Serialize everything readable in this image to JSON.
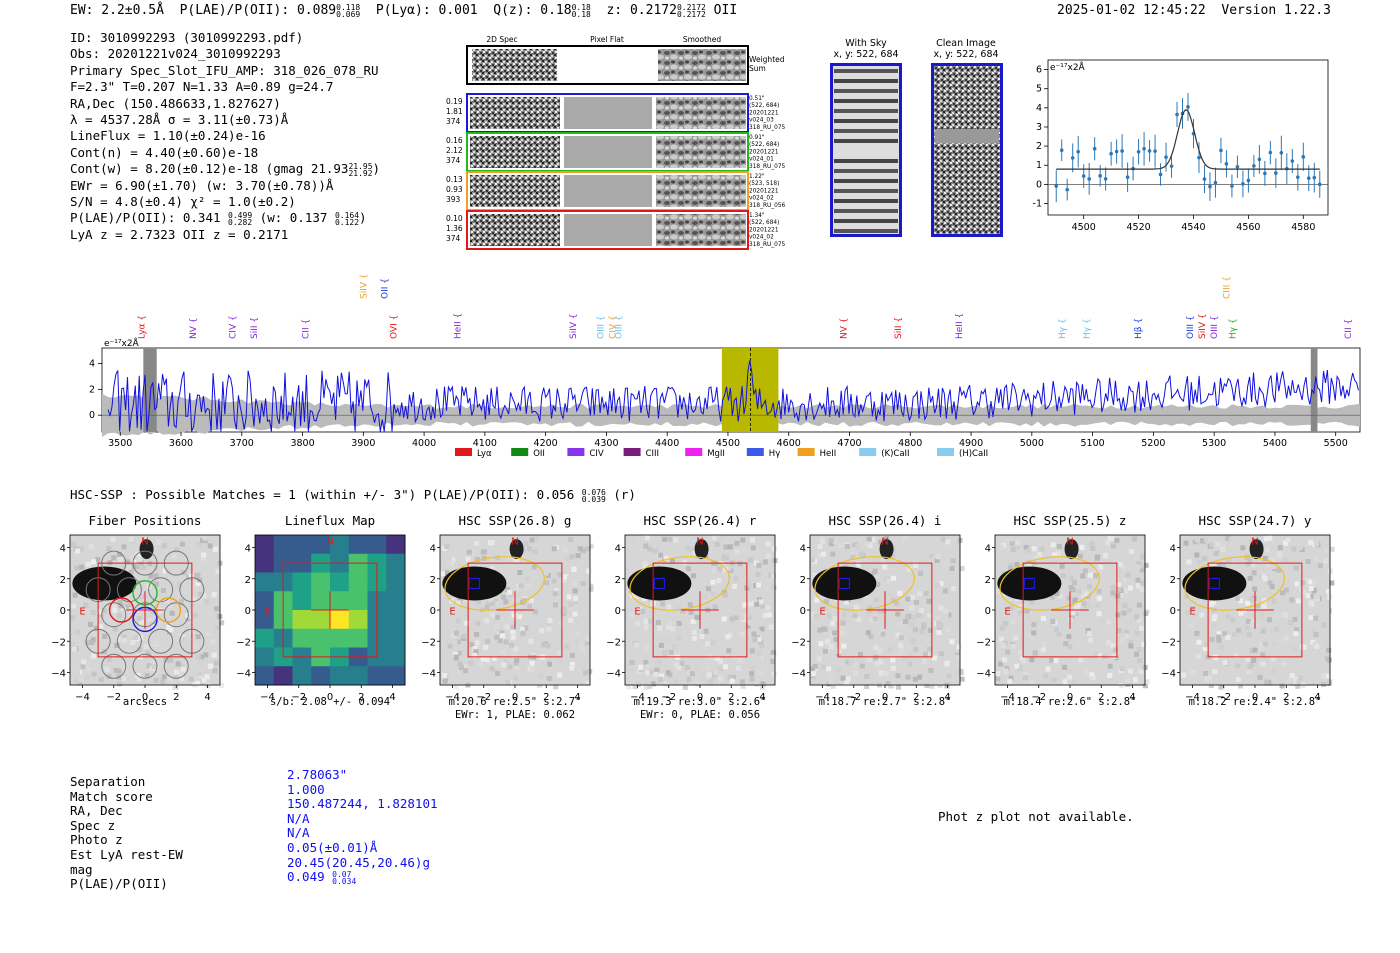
{
  "header": {
    "ew": "EW: 2.2±0.5Å",
    "plae_label": "P(LAE)/P(OII): 0.089",
    "plae_hi": "0.118",
    "plae_lo": "0.069",
    "plya": "P(Lyα): 0.001",
    "qz_label": "Q(z): 0.18",
    "qz_hi": "0.18",
    "qz_lo": "0.18",
    "z_label": "z: 0.2172",
    "z_hi": "0.2172",
    "z_lo": "0.2172",
    "z_line": "OII",
    "timestamp": "2025-01-02 12:45:22",
    "version": "Version 1.22.3"
  },
  "info": {
    "id": "ID: 3010992293 (3010992293.pdf)",
    "obs": "Obs: 20201221v024_3010992293",
    "primary": "Primary Spec_Slot_IFU_AMP: 318_026_078_RU",
    "params": "F=2.3\"  T=0.207  N=1.33  A=0.89  g=24.7",
    "radec": "RA,Dec (150.486633,1.827627)",
    "lambda": "λ = 4537.28Å  σ = 3.11(±0.73)Å",
    "lineflux": "LineFlux = 1.10(±0.24)e-16",
    "contn": "Cont(n) = 4.40(±0.60)e-18",
    "contw": "Cont(w) = 8.20(±0.12)e-18 (gmag 21.93",
    "contw_hi": "21.95",
    "contw_lo": "21.92",
    "contw_end": ")",
    "ewr": "EWr = 6.90(±1.70) (w: 3.70(±0.78))Å",
    "sn": "S/N = 4.8(±0.4)  χ² = 1.0(±0.2)",
    "plae": "P(LAE)/P(OII): 0.341",
    "plae_hi": "0.499",
    "plae_lo": "0.282",
    "plae_w": "(w: 0.137",
    "plae_w_hi": "0.164",
    "plae_w_lo": "0.122",
    "plae_w_end": ")",
    "lyaz": "LyA z = 2.7323   OII z = 0.2171"
  },
  "cutouts": {
    "col_labels": [
      "2D Spec",
      "Pixel Flat",
      "Smoothed"
    ],
    "weighted_sum": [
      "Weighted",
      "Sum"
    ],
    "rows": [
      {
        "left": [
          "0.19",
          "1.81",
          "374"
        ],
        "right": [
          "0.51\"",
          "(522, 684)",
          "20201221",
          "v024_03",
          "318_RU_075"
        ],
        "color": "#1a1ad8"
      },
      {
        "left": [
          "0.16",
          "2.12",
          "374"
        ],
        "right": [
          "0.91\"",
          "(522, 684)",
          "20201221",
          "v024_01",
          "318_RU_075"
        ],
        "color": "#22b822"
      },
      {
        "left": [
          "0.13",
          "0.93",
          "393"
        ],
        "right": [
          "1.22\"",
          "(523, 518)",
          "20201221",
          "v024_02",
          "318_RU_056"
        ],
        "color": "#f0a020"
      },
      {
        "left": [
          "0.10",
          "1.36",
          "374"
        ],
        "right": [
          "1.34\"",
          "(522, 684)",
          "20201221",
          "v024_02",
          "318_RU_075"
        ],
        "color": "#e01818"
      }
    ]
  },
  "sky": {
    "with_sky_title": "With Sky",
    "with_sky_xy": "x, y: 522, 684",
    "clean_title": "Clean Image",
    "clean_xy": "x, y: 522, 684"
  },
  "zoom_plot": {
    "unit": "e⁻¹⁷x2Å",
    "x_ticks": [
      "4500",
      "4520",
      "4540",
      "4560",
      "4580"
    ],
    "y_ticks": [
      "6",
      "5",
      "4",
      "3",
      "2",
      "1",
      "0",
      "-1"
    ]
  },
  "spectrum": {
    "unit": "e⁻¹⁷x2Å",
    "y_ticks": [
      "4",
      "2",
      "0"
    ],
    "x_ticks": [
      "3500",
      "3600",
      "3700",
      "3800",
      "3900",
      "4000",
      "4100",
      "4200",
      "4300",
      "4400",
      "4500",
      "4600",
      "4700",
      "4800",
      "4900",
      "5000",
      "5100",
      "5200",
      "5300",
      "5400",
      "5500"
    ],
    "lines": [
      {
        "label": "Lyα",
        "color": "#e01818",
        "row": 0
      },
      {
        "label": "NV",
        "color": "#8822dd",
        "row": 0
      },
      {
        "label": "CIV",
        "color": "#8822dd",
        "row": 0
      },
      {
        "label": "SiII",
        "color": "#8822dd",
        "row": 0
      },
      {
        "label": "CII",
        "color": "#8822dd",
        "row": 0
      },
      {
        "label": "SiIV",
        "color": "#f0a020",
        "row": 1
      },
      {
        "label": "OII",
        "color": "#1a3ae0",
        "row": 1
      },
      {
        "label": "OVI",
        "color": "#e01818",
        "row": 0
      },
      {
        "label": "HeII",
        "color": "#8822dd",
        "row": 0
      },
      {
        "label": "SiIV",
        "color": "#8822dd",
        "row": 0
      },
      {
        "label": "OIII",
        "color": "#66c0ee",
        "row": 0
      },
      {
        "label": "CIV",
        "color": "#f0a020",
        "row": 0
      },
      {
        "label": "OIII",
        "color": "#66c0ee",
        "row": 0
      },
      {
        "label": "NV",
        "color": "#e01818",
        "row": 0
      },
      {
        "label": "SiII",
        "color": "#e01818",
        "row": 0
      },
      {
        "label": "HeII",
        "color": "#8822dd",
        "row": 0
      },
      {
        "label": "Hγ",
        "color": "#66c0ee",
        "row": 0
      },
      {
        "label": "Hγ",
        "color": "#66c0ee",
        "row": 0
      },
      {
        "label": "Hβ",
        "color": "#1a3ae0",
        "row": 0
      },
      {
        "label": "OIII",
        "color": "#1a3ae0",
        "row": 0
      },
      {
        "label": "SiIV",
        "color": "#e01818",
        "row": 0
      },
      {
        "label": "OIII",
        "color": "#8822dd",
        "row": 0
      },
      {
        "label": "Hγ",
        "color": "#22aa22",
        "row": 0
      },
      {
        "label": "CIII",
        "color": "#f0a020",
        "row": 1
      },
      {
        "label": "CII",
        "color": "#8822dd",
        "row": 0
      }
    ],
    "legend": [
      {
        "label": "Lyα",
        "color": "#e01818"
      },
      {
        "label": "OII",
        "color": "#118811"
      },
      {
        "label": "CIV",
        "color": "#8833ee"
      },
      {
        "label": "CIII",
        "color": "#7a1a7a"
      },
      {
        "label": "MgII",
        "color": "#ee22ee"
      },
      {
        "label": "Hγ",
        "color": "#3a5ae8"
      },
      {
        "label": "HeII",
        "color": "#f0a020"
      },
      {
        "label": "(K)CaII",
        "color": "#88ccee"
      },
      {
        "label": "(H)CaII",
        "color": "#88ccee"
      }
    ]
  },
  "hsc": {
    "heading": "HSC-SSP : Possible Matches = 1 (within +/- 3\")  P(LAE)/P(OII): 0.056",
    "heading_hi": "0.076",
    "heading_lo": "0.039",
    "heading_end": "(r)",
    "panels": [
      {
        "title": "Fiber Positions",
        "cap1": "arcsecs",
        "cap2": ""
      },
      {
        "title": "Lineflux Map",
        "cap1": "s/b: 2.08 +/- 0.094",
        "cap2": ""
      },
      {
        "title": "HSC SSP(26.8) g",
        "cap1": "m:20.6  re:2.5\"  s:2.7\"",
        "cap2": "EWr: 1, PLAE: 0.062"
      },
      {
        "title": "HSC SSP(26.4) r",
        "cap1": "m:19.3  re:3.0\"  s:2.6\"",
        "cap2": "EWr: 0, PLAE: 0.056"
      },
      {
        "title": "HSC SSP(26.4) i",
        "cap1": "m:18.7  re:2.7\"  s:2.8\"",
        "cap2": ""
      },
      {
        "title": "HSC SSP(25.5) z",
        "cap1": "m:18.4  re:2.6\"  s:2.8\"",
        "cap2": ""
      },
      {
        "title": "HSC SSP(24.7) y",
        "cap1": "m:18.2  re:2.4\"  s:2.8\"",
        "cap2": ""
      }
    ],
    "axis_ticks": [
      "4",
      "2",
      "0",
      "−2",
      "−4"
    ],
    "x_ticks": [
      "−4",
      "−2",
      "0",
      "2",
      "4"
    ],
    "north": "N",
    "east": "E"
  },
  "match_table": {
    "rows": [
      {
        "key": "Separation",
        "val": "2.78063\""
      },
      {
        "key": "Match score",
        "val": "1.000"
      },
      {
        "key": "RA, Dec",
        "val": "150.487244, 1.828101"
      },
      {
        "key": "Spec z",
        "val": "N/A"
      },
      {
        "key": "Photo z",
        "val": "N/A"
      },
      {
        "key": "Est LyA rest-EW",
        "val": "0.05(±0.01)Å"
      },
      {
        "key": "mag",
        "val": "20.45(20.45,20.46)g"
      }
    ],
    "plae_key": "P(LAE)/P(OII)",
    "plae_val": "0.049",
    "plae_hi": "0.07",
    "plae_lo": "0.034"
  },
  "photz_msg": "Phot z plot not available."
}
